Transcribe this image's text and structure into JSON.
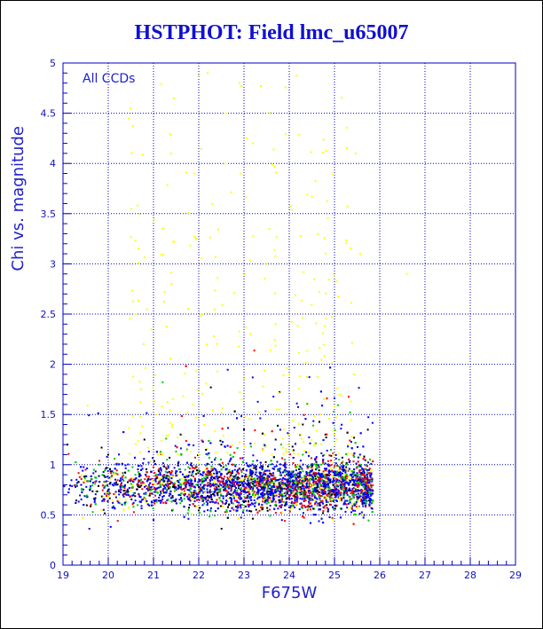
{
  "title": "HSTPHOT: Field lmc_u65007",
  "chart_data": {
    "type": "scatter",
    "title": "HSTPHOT: Field lmc_u65007",
    "xlabel": "F675W",
    "ylabel": "Chi vs. magnitude",
    "annotation": "All CCDs",
    "xlim": [
      19,
      29
    ],
    "ylim": [
      0,
      5
    ],
    "x_ticks": [
      "19",
      "20",
      "21",
      "22",
      "23",
      "24",
      "25",
      "26",
      "27",
      "28",
      "29"
    ],
    "y_ticks": [
      "0",
      "0.5",
      "1",
      "1.5",
      "2",
      "2.5",
      "3",
      "3.5",
      "4",
      "4.5",
      "5"
    ],
    "grid": true,
    "series_colors": [
      "#0000ff",
      "#ff0000",
      "#00cc00",
      "#000000",
      "#ffff00"
    ],
    "series": [
      {
        "color": "#0000ff",
        "points": [
          [
            19.3,
            0.85
          ],
          [
            19.6,
            0.75
          ],
          [
            19.9,
            0.55
          ],
          [
            20.1,
            0.62
          ],
          [
            20.4,
            0.7
          ],
          [
            20.7,
            0.9
          ],
          [
            21.0,
            0.45
          ],
          [
            21.2,
            0.68
          ],
          [
            21.5,
            0.75
          ],
          [
            21.8,
            0.6
          ],
          [
            22.1,
            0.72
          ],
          [
            22.3,
            0.85
          ],
          [
            22.6,
            0.78
          ],
          [
            22.9,
            0.7
          ],
          [
            23.1,
            0.82
          ],
          [
            23.3,
            0.66
          ],
          [
            23.5,
            0.74
          ],
          [
            23.8,
            0.8
          ],
          [
            24.0,
            0.7
          ],
          [
            24.2,
            0.77
          ],
          [
            24.4,
            0.69
          ],
          [
            24.6,
            0.81
          ],
          [
            24.8,
            0.73
          ],
          [
            25.0,
            0.78
          ],
          [
            25.2,
            0.7
          ],
          [
            25.4,
            0.76
          ],
          [
            25.6,
            0.72
          ],
          [
            25.8,
            0.69
          ]
        ]
      },
      {
        "color": "#ff0000",
        "points": [
          [
            19.5,
            0.95
          ],
          [
            20.2,
            0.8
          ],
          [
            20.9,
            0.88
          ],
          [
            21.4,
            0.92
          ],
          [
            21.9,
            0.7
          ],
          [
            22.4,
            0.65
          ],
          [
            22.7,
            0.9
          ],
          [
            23.2,
            0.75
          ],
          [
            23.6,
            0.85
          ],
          [
            24.1,
            0.62
          ],
          [
            24.5,
            0.9
          ],
          [
            24.9,
            0.68
          ],
          [
            25.3,
            0.88
          ],
          [
            25.7,
            0.64
          ]
        ]
      },
      {
        "color": "#00cc00",
        "points": [
          [
            19.8,
            1.0
          ],
          [
            20.6,
            0.9
          ],
          [
            21.3,
            1.05
          ],
          [
            21.7,
            0.95
          ],
          [
            22.2,
            1.1
          ],
          [
            22.8,
            1.0
          ],
          [
            23.4,
            0.95
          ],
          [
            23.9,
            1.05
          ],
          [
            24.3,
            1.1
          ],
          [
            24.7,
            1.0
          ],
          [
            25.1,
            1.05
          ],
          [
            25.5,
            0.98
          ]
        ]
      },
      {
        "color": "#000000",
        "points": [
          [
            19.1,
            1.2
          ],
          [
            20.0,
            1.1
          ],
          [
            20.8,
            1.25
          ],
          [
            21.6,
            1.3
          ],
          [
            22.5,
            1.2
          ],
          [
            23.0,
            1.35
          ],
          [
            23.7,
            1.25
          ],
          [
            24.3,
            1.4
          ],
          [
            24.8,
            1.3
          ]
        ]
      },
      {
        "color": "#ffff00",
        "points": [
          [
            20.6,
            2.5
          ],
          [
            21.4,
            2.8
          ],
          [
            21.9,
            3.9
          ],
          [
            22.2,
            4.9
          ],
          [
            22.6,
            4.5
          ],
          [
            22.9,
            4.8
          ],
          [
            23.2,
            4.2
          ],
          [
            23.5,
            3.0
          ],
          [
            23.7,
            2.4
          ],
          [
            24.0,
            1.9
          ],
          [
            24.4,
            1.6
          ],
          [
            24.7,
            1.5
          ],
          [
            25.0,
            1.3
          ],
          [
            25.3,
            1.2
          ],
          [
            26.6,
            2.9
          ]
        ]
      }
    ]
  }
}
